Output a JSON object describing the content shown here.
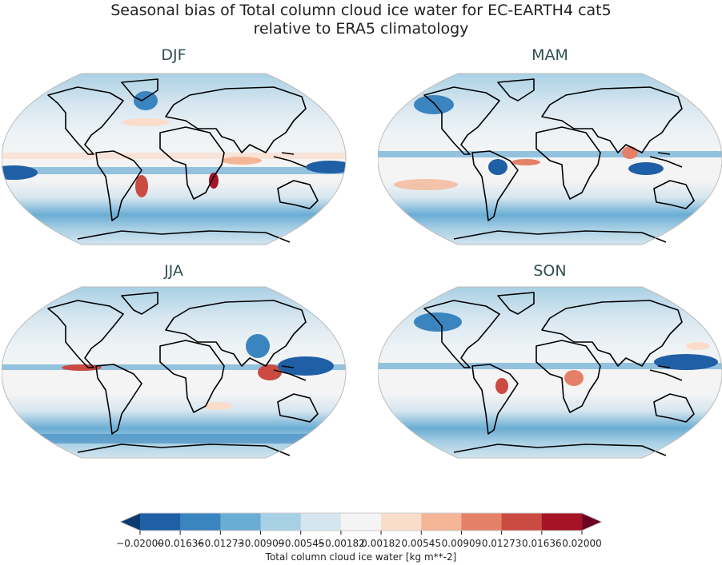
{
  "figure": {
    "title_line1": "Seasonal bias of Total column cloud ice water for EC-EARTH4 cat5",
    "title_line2": "relative to ERA5 climatology"
  },
  "chart_data": {
    "type": "heatmap",
    "projection": "Robinson",
    "panels": [
      {
        "title": "DJF"
      },
      {
        "title": "MAM"
      },
      {
        "title": "JJA"
      },
      {
        "title": "SON"
      }
    ],
    "colorbar": {
      "label": "Total column cloud ice water [kg m**-2]",
      "ticks": [
        "−0.02000",
        "−0.01636",
        "−0.01273",
        "−0.00909",
        "−0.00545",
        "−0.00182",
        "0.00182",
        "0.00545",
        "0.00909",
        "0.01273",
        "0.01636",
        "0.02000"
      ],
      "range": [
        -0.02,
        0.02
      ],
      "extend": "both",
      "colormap": "RdBu_r",
      "colors": [
        "#1f5fa6",
        "#3a85c0",
        "#6aadd4",
        "#a8d0e4",
        "#d6e6f0",
        "#f4f4f4",
        "#fbdccb",
        "#f5b698",
        "#e58068",
        "#cb4a42",
        "#a51426"
      ],
      "under_color": "#0d3a6e",
      "over_color": "#6b0020"
    }
  }
}
